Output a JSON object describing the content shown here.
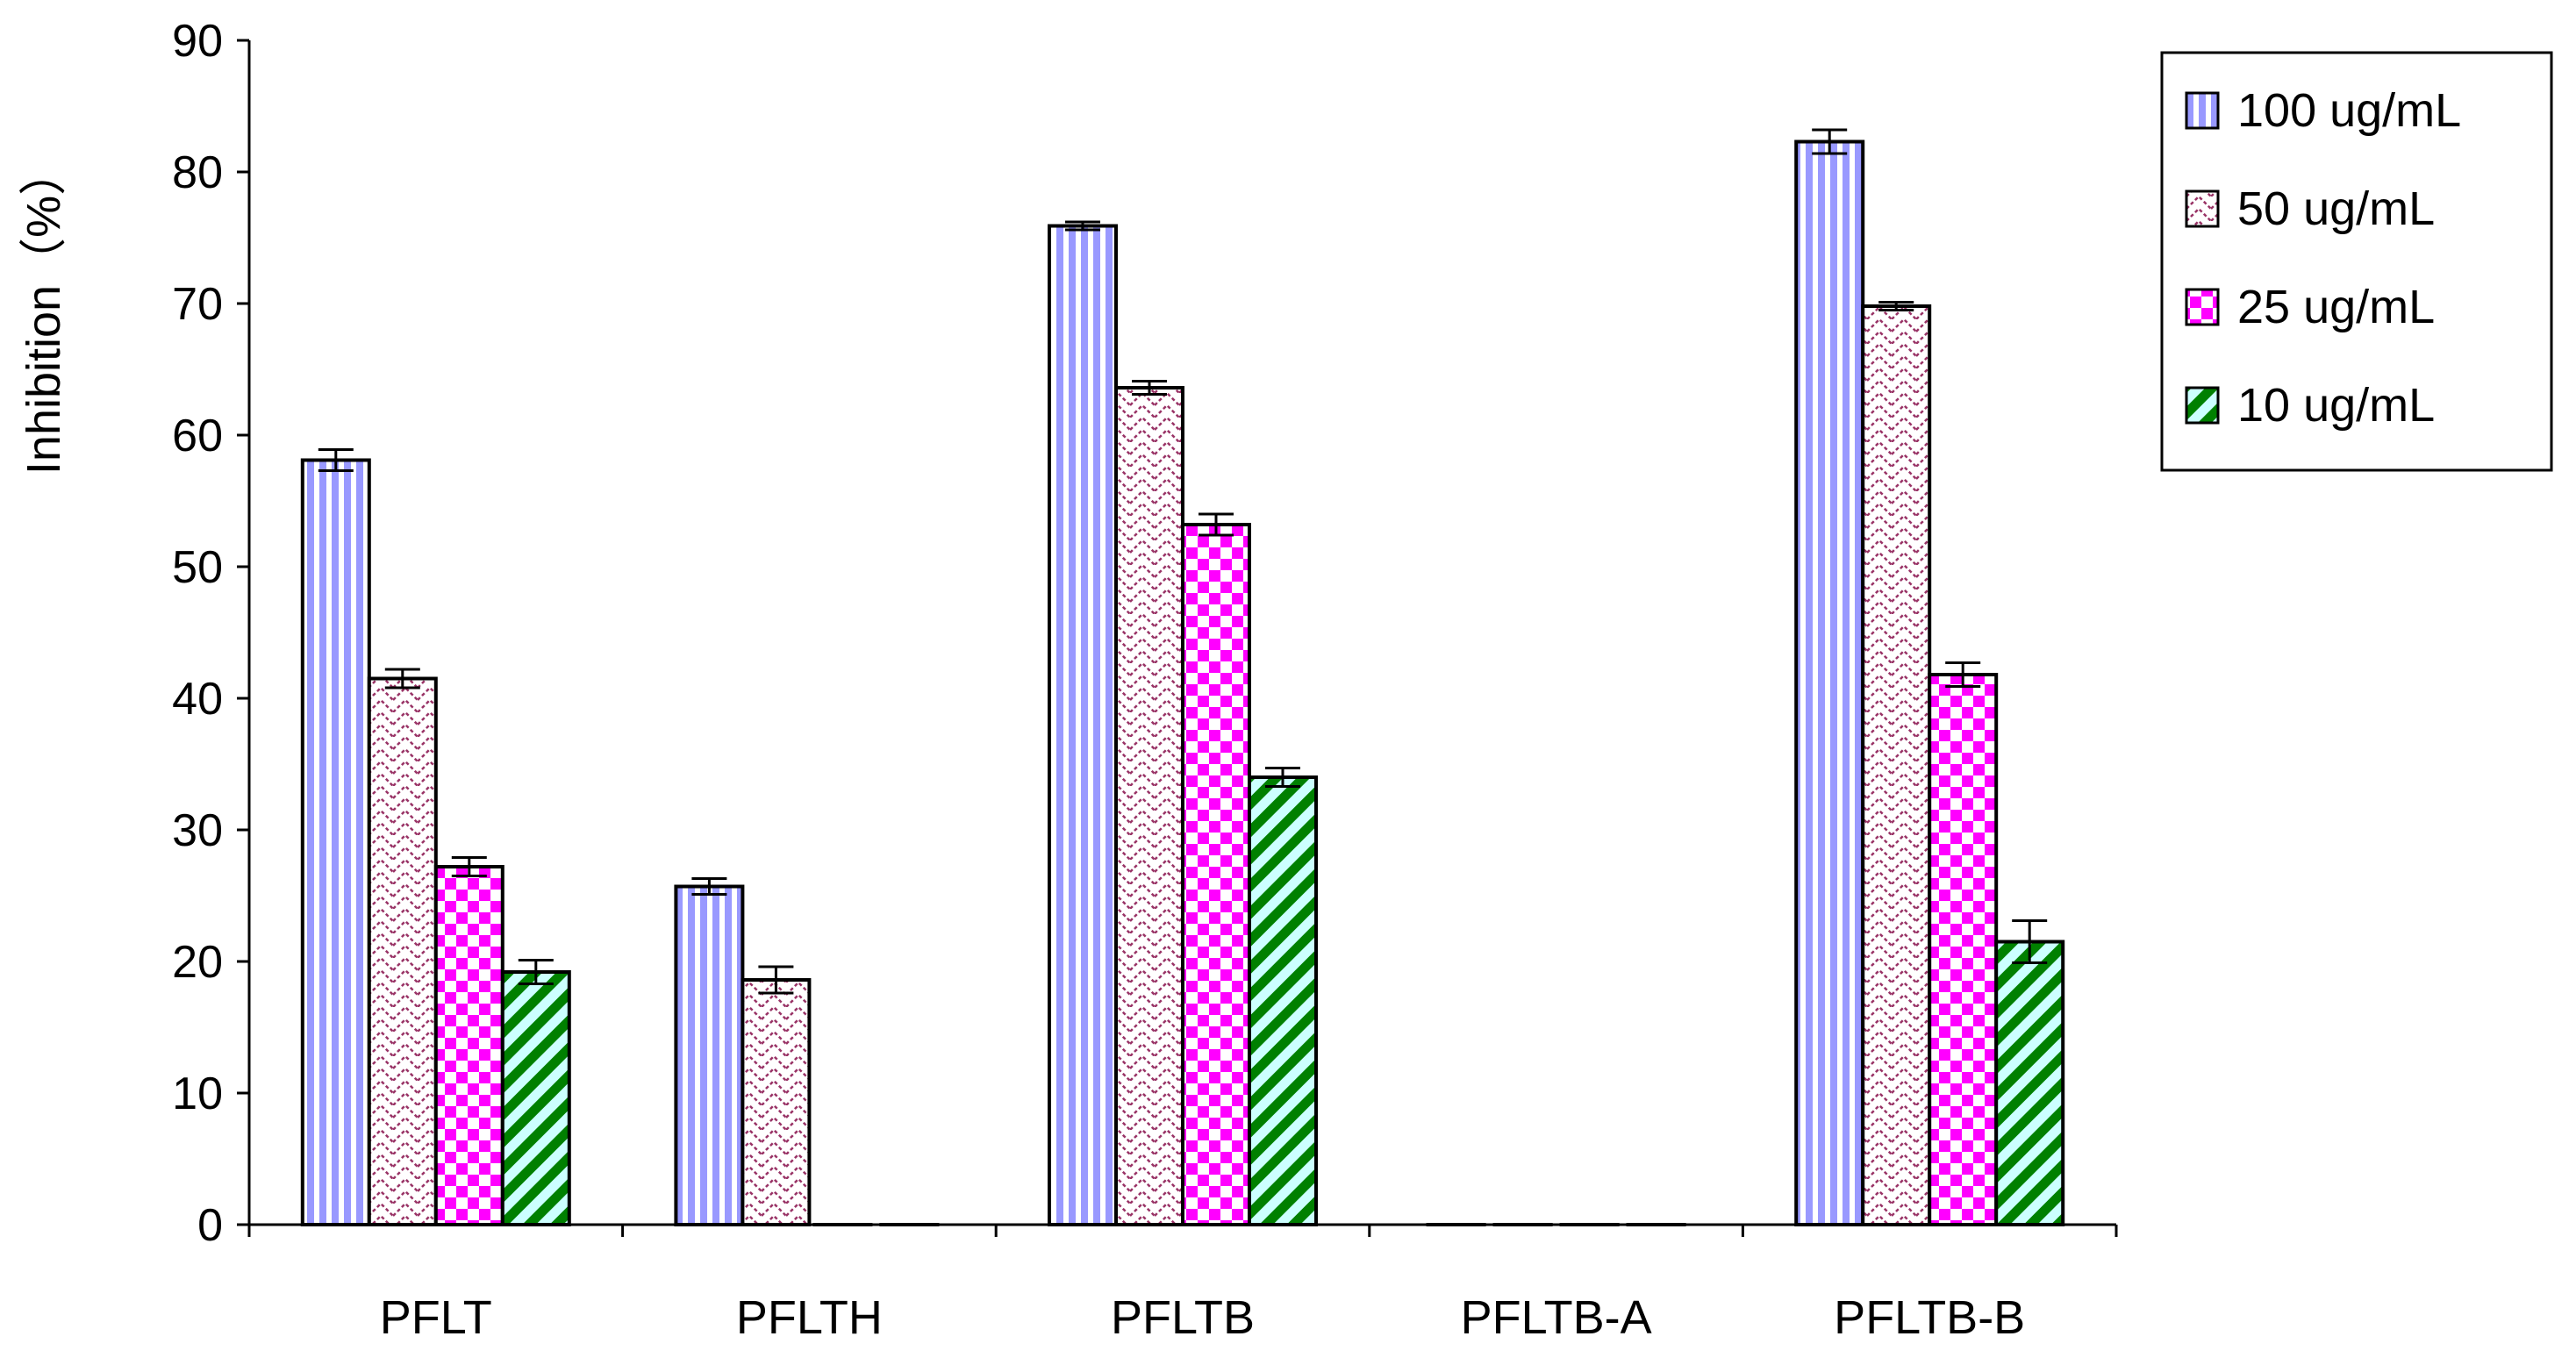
{
  "chart_data": {
    "type": "bar",
    "title": "",
    "xlabel": "",
    "ylabel": "Inhibition（%）",
    "ylim": [
      0,
      90
    ],
    "yticks": [
      0,
      10,
      20,
      30,
      40,
      50,
      60,
      70,
      80,
      90
    ],
    "grid": false,
    "legend_position": "top-right",
    "categories": [
      "PFLT",
      "PFLTH",
      "PFLTB",
      "PFLTB-A",
      "PFLTB-B"
    ],
    "series": [
      {
        "name": "100 ug/mL",
        "pattern": "vertical-stripes",
        "color": "#9999ff",
        "values": [
          58.1,
          25.7,
          75.9,
          0,
          82.3
        ],
        "errors": [
          0.8,
          0.6,
          0.3,
          0,
          0.9
        ]
      },
      {
        "name": "50 ug/mL",
        "pattern": "zigzag",
        "color": "#993366",
        "values": [
          41.5,
          18.6,
          63.6,
          0,
          69.8
        ],
        "errors": [
          0.7,
          1.0,
          0.5,
          0,
          0.3
        ]
      },
      {
        "name": "25 ug/mL",
        "pattern": "checkerboard",
        "color": "#ff00ff",
        "values": [
          27.2,
          0,
          53.2,
          0,
          41.8
        ],
        "errors": [
          0.7,
          0,
          0.8,
          0,
          0.9
        ]
      },
      {
        "name": "10 ug/mL",
        "pattern": "diagonal-stripes",
        "color": "#008000",
        "fill2": "#ccffff",
        "values": [
          19.2,
          0,
          34.0,
          0,
          21.5
        ],
        "errors": [
          0.9,
          0,
          0.7,
          0,
          1.6
        ]
      }
    ]
  }
}
